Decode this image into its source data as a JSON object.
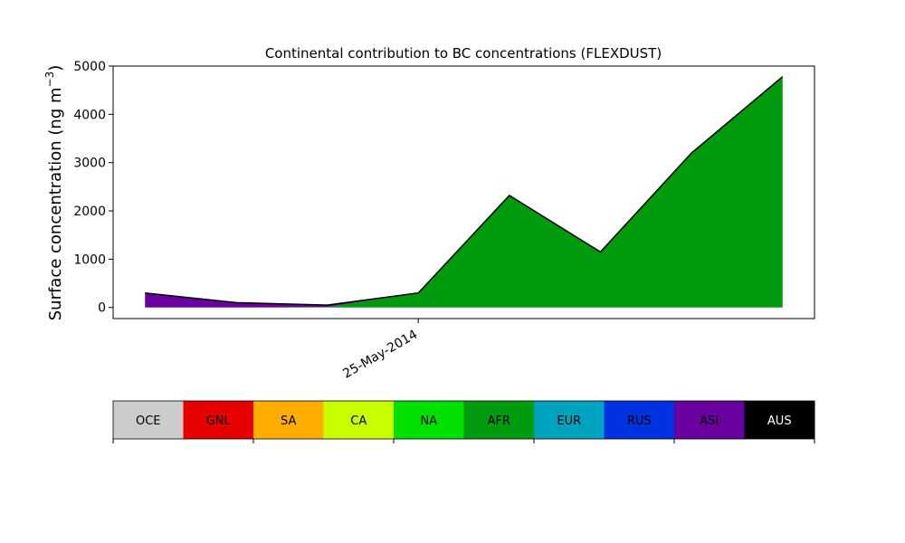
{
  "chart_data": {
    "type": "area",
    "title": "Continental contribution to BC concentrations (FLEXDUST)",
    "ylabel_main": "Surface concentration (ng m",
    "ylabel_sup": "−3",
    "ylabel_close": ")",
    "xlabel": "",
    "ylim": [
      -230,
      5000
    ],
    "y_ticks": [
      0,
      1000,
      2000,
      3000,
      4000,
      5000
    ],
    "x_tick_labels": [
      {
        "x": 3,
        "label": "25-May-2014"
      }
    ],
    "x": [
      0,
      1,
      2,
      3,
      4,
      5,
      6,
      7
    ],
    "xlim": [
      -0.35,
      7.35
    ],
    "series": [
      {
        "name": "AFR",
        "color": "#009a0e",
        "values": [
          0,
          0,
          10,
          300,
          2320,
          1150,
          3200,
          4780
        ]
      },
      {
        "name": "ASI",
        "color": "#6a009d",
        "values": [
          300,
          100,
          40,
          0,
          0,
          0,
          0,
          0
        ]
      }
    ],
    "legend": {
      "position": "bottom",
      "regions": [
        {
          "name": "OCE",
          "color": "#cccccc",
          "text_color": "#000000"
        },
        {
          "name": "GNL",
          "color": "#e60000",
          "text_color": "#000000"
        },
        {
          "name": "SA",
          "color": "#ffad00",
          "text_color": "#000000"
        },
        {
          "name": "CA",
          "color": "#c8ff00",
          "text_color": "#000000"
        },
        {
          "name": "NA",
          "color": "#00e000",
          "text_color": "#000000"
        },
        {
          "name": "AFR",
          "color": "#009a0e",
          "text_color": "#000000"
        },
        {
          "name": "EUR",
          "color": "#00a3bf",
          "text_color": "#000000"
        },
        {
          "name": "RUS",
          "color": "#0033e0",
          "text_color": "#000000"
        },
        {
          "name": "ASI",
          "color": "#6a009d",
          "text_color": "#000000"
        },
        {
          "name": "AUS",
          "color": "#000000",
          "text_color": "#ffffff"
        }
      ]
    }
  }
}
